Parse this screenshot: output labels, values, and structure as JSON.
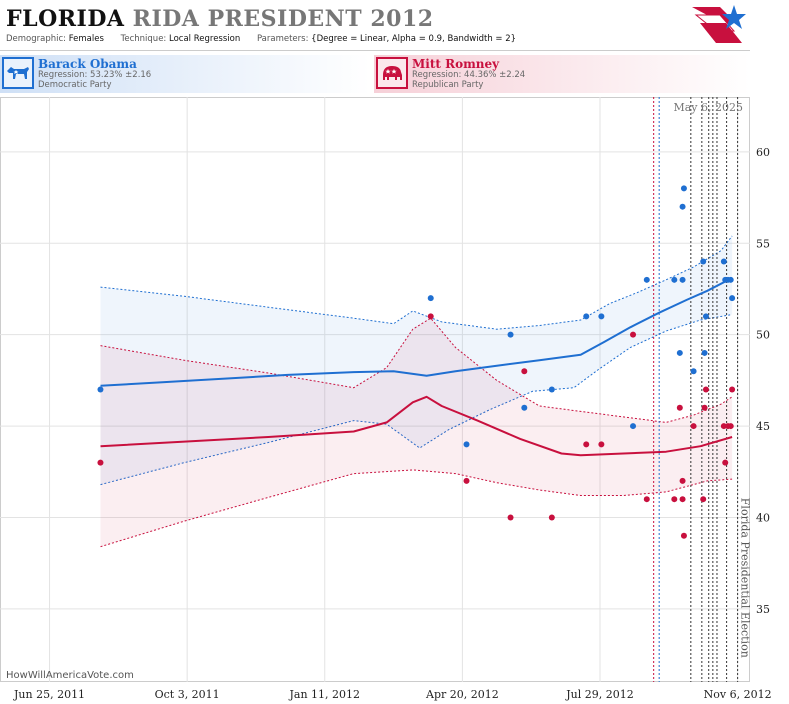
{
  "header": {
    "title_state": "FLORIDA",
    "title_state_echo": "RIDA",
    "title_office": "PRESIDENT",
    "title_year": "2012",
    "demographic_label": "Demographic:",
    "demographic_value": "Females",
    "technique_label": "Technique:",
    "technique_value": "Local Regression",
    "parameters_label": "Parameters:",
    "parameters_value": "{Degree = Linear, Alpha = 0.9, Bandwidth = 2}"
  },
  "candidates": [
    {
      "name": "Barack Obama",
      "regression": "Regression: 53.23% ±2.16",
      "party": "Democratic Party",
      "color": "#1f6fd1"
    },
    {
      "name": "Mitt Romney",
      "regression": "Regression: 44.36% ±2.24",
      "party": "Republican Party",
      "color": "#c8103e"
    }
  ],
  "footer": {
    "watermark": "HowWillAmericaVote.com",
    "date_stamp": "May 6, 2025",
    "election_label": "Florida Presidential Election"
  },
  "chart_data": {
    "type": "scatter",
    "x_unit": "date",
    "xlim": [
      "2011-05-20",
      "2012-11-15"
    ],
    "ylim": [
      31,
      63
    ],
    "y_ticks": [
      35,
      40,
      45,
      50,
      55,
      60
    ],
    "x_ticks": [
      {
        "date": "2011-06-25",
        "label": "Jun 25, 2011"
      },
      {
        "date": "2011-10-03",
        "label": "Oct 3, 2011"
      },
      {
        "date": "2012-01-11",
        "label": "Jan 11, 2012"
      },
      {
        "date": "2012-04-20",
        "label": "Apr 20, 2012"
      },
      {
        "date": "2012-07-29",
        "label": "Jul 29, 2012"
      },
      {
        "date": "2012-11-06",
        "label": "Nov 6, 2012"
      }
    ],
    "election_date": "2012-11-06",
    "grid": true,
    "vertical_markers": [
      {
        "date": "2012-09-06",
        "color": "#c8103e"
      },
      {
        "date": "2012-09-10",
        "color": "#1f6fd1"
      },
      {
        "date": "2012-10-03",
        "color": "#333333"
      },
      {
        "date": "2012-10-11",
        "color": "#333333"
      },
      {
        "date": "2012-10-16",
        "color": "#333333"
      },
      {
        "date": "2012-10-19",
        "color": "#333333"
      },
      {
        "date": "2012-10-22",
        "color": "#333333"
      },
      {
        "date": "2012-10-29",
        "color": "#333333"
      },
      {
        "date": "2012-11-06",
        "color": "#333333"
      }
    ],
    "series": [
      {
        "name": "Barack Obama",
        "color": "#1f6fd1",
        "points": [
          [
            "2011-08-01",
            47
          ],
          [
            "2012-03-28",
            52
          ],
          [
            "2012-04-23",
            44
          ],
          [
            "2012-05-25",
            50
          ],
          [
            "2012-06-04",
            46
          ],
          [
            "2012-06-24",
            47
          ],
          [
            "2012-07-19",
            51
          ],
          [
            "2012-07-30",
            51
          ],
          [
            "2012-08-22",
            45
          ],
          [
            "2012-09-01",
            53
          ],
          [
            "2012-09-21",
            53
          ],
          [
            "2012-09-25",
            49
          ],
          [
            "2012-09-27",
            53
          ],
          [
            "2012-09-27",
            57
          ],
          [
            "2012-09-28",
            58
          ],
          [
            "2012-10-05",
            48
          ],
          [
            "2012-10-12",
            54
          ],
          [
            "2012-10-13",
            49
          ],
          [
            "2012-10-14",
            51
          ],
          [
            "2012-10-27",
            54
          ],
          [
            "2012-10-28",
            53
          ],
          [
            "2012-10-30",
            53
          ],
          [
            "2012-11-01",
            53
          ],
          [
            "2012-11-02",
            52
          ]
        ],
        "trend": [
          [
            "2011-08-01",
            47.2
          ],
          [
            "2011-09-15",
            47.4
          ],
          [
            "2011-11-01",
            47.6
          ],
          [
            "2011-12-15",
            47.8
          ],
          [
            "2012-02-01",
            47.95
          ],
          [
            "2012-03-01",
            48.0
          ],
          [
            "2012-03-25",
            47.75
          ],
          [
            "2012-04-15",
            48.0
          ],
          [
            "2012-05-15",
            48.3
          ],
          [
            "2012-06-15",
            48.6
          ],
          [
            "2012-07-15",
            48.9
          ],
          [
            "2012-08-01",
            49.6
          ],
          [
            "2012-08-20",
            50.4
          ],
          [
            "2012-09-10",
            51.2
          ],
          [
            "2012-09-30",
            51.9
          ],
          [
            "2012-10-15",
            52.4
          ],
          [
            "2012-11-02",
            53.1
          ]
        ],
        "upper": [
          [
            "2011-08-01",
            52.6
          ],
          [
            "2011-10-01",
            52.1
          ],
          [
            "2011-12-01",
            51.5
          ],
          [
            "2012-02-01",
            50.9
          ],
          [
            "2012-03-01",
            50.6
          ],
          [
            "2012-03-15",
            51.3
          ],
          [
            "2012-04-05",
            50.7
          ],
          [
            "2012-05-15",
            50.3
          ],
          [
            "2012-06-15",
            50.5
          ],
          [
            "2012-07-15",
            50.8
          ],
          [
            "2012-08-05",
            51.7
          ],
          [
            "2012-08-25",
            52.3
          ],
          [
            "2012-09-15",
            53.0
          ],
          [
            "2012-10-05",
            53.7
          ],
          [
            "2012-10-25",
            54.6
          ],
          [
            "2012-11-02",
            55.4
          ]
        ],
        "lower": [
          [
            "2011-08-01",
            41.8
          ],
          [
            "2011-10-01",
            43.0
          ],
          [
            "2011-12-01",
            44.1
          ],
          [
            "2012-02-01",
            45.3
          ],
          [
            "2012-02-25",
            45.1
          ],
          [
            "2012-03-20",
            43.8
          ],
          [
            "2012-04-10",
            44.8
          ],
          [
            "2012-05-10",
            45.9
          ],
          [
            "2012-06-10",
            46.9
          ],
          [
            "2012-07-10",
            47.1
          ],
          [
            "2012-07-28",
            48.1
          ],
          [
            "2012-08-20",
            49.3
          ],
          [
            "2012-09-15",
            50.2
          ],
          [
            "2012-10-10",
            50.8
          ],
          [
            "2012-11-02",
            51.1
          ]
        ]
      },
      {
        "name": "Mitt Romney",
        "color": "#c8103e",
        "points": [
          [
            "2011-08-01",
            43
          ],
          [
            "2012-03-28",
            51
          ],
          [
            "2012-04-23",
            42
          ],
          [
            "2012-05-25",
            40
          ],
          [
            "2012-06-04",
            48
          ],
          [
            "2012-06-24",
            40
          ],
          [
            "2012-07-19",
            44
          ],
          [
            "2012-07-30",
            44
          ],
          [
            "2012-08-22",
            50
          ],
          [
            "2012-09-01",
            41
          ],
          [
            "2012-09-21",
            41
          ],
          [
            "2012-09-25",
            46
          ],
          [
            "2012-09-27",
            42
          ],
          [
            "2012-09-27",
            41
          ],
          [
            "2012-09-28",
            39
          ],
          [
            "2012-10-05",
            45
          ],
          [
            "2012-10-12",
            41
          ],
          [
            "2012-10-13",
            46
          ],
          [
            "2012-10-14",
            47
          ],
          [
            "2012-10-27",
            45
          ],
          [
            "2012-10-28",
            43
          ],
          [
            "2012-10-30",
            45
          ],
          [
            "2012-11-01",
            45
          ],
          [
            "2012-11-02",
            47
          ]
        ],
        "trend": [
          [
            "2011-08-01",
            43.9
          ],
          [
            "2011-10-01",
            44.15
          ],
          [
            "2011-12-01",
            44.4
          ],
          [
            "2012-02-01",
            44.7
          ],
          [
            "2012-02-25",
            45.2
          ],
          [
            "2012-03-15",
            46.3
          ],
          [
            "2012-03-25",
            46.6
          ],
          [
            "2012-04-05",
            46.1
          ],
          [
            "2012-05-01",
            45.3
          ],
          [
            "2012-06-01",
            44.3
          ],
          [
            "2012-07-01",
            43.5
          ],
          [
            "2012-07-15",
            43.4
          ],
          [
            "2012-08-15",
            43.5
          ],
          [
            "2012-09-15",
            43.6
          ],
          [
            "2012-10-10",
            43.9
          ],
          [
            "2012-11-02",
            44.4
          ]
        ],
        "upper": [
          [
            "2011-08-01",
            49.4
          ],
          [
            "2011-10-01",
            48.6
          ],
          [
            "2011-12-01",
            47.9
          ],
          [
            "2012-02-01",
            47.1
          ],
          [
            "2012-02-25",
            48.2
          ],
          [
            "2012-03-15",
            50.3
          ],
          [
            "2012-03-28",
            50.9
          ],
          [
            "2012-04-15",
            49.3
          ],
          [
            "2012-05-15",
            47.5
          ],
          [
            "2012-06-15",
            46.1
          ],
          [
            "2012-07-15",
            45.8
          ],
          [
            "2012-08-15",
            45.5
          ],
          [
            "2012-09-15",
            45.2
          ],
          [
            "2012-10-05",
            45.6
          ],
          [
            "2012-10-25",
            46.2
          ],
          [
            "2012-11-02",
            46.6
          ]
        ],
        "lower": [
          [
            "2011-08-01",
            38.4
          ],
          [
            "2011-10-01",
            39.8
          ],
          [
            "2011-12-01",
            41.1
          ],
          [
            "2012-02-01",
            42.4
          ],
          [
            "2012-03-15",
            42.6
          ],
          [
            "2012-04-15",
            42.4
          ],
          [
            "2012-05-15",
            41.9
          ],
          [
            "2012-06-15",
            41.5
          ],
          [
            "2012-07-15",
            41.2
          ],
          [
            "2012-08-15",
            41.2
          ],
          [
            "2012-09-15",
            41.4
          ],
          [
            "2012-10-15",
            42.0
          ],
          [
            "2012-11-02",
            42.1
          ]
        ]
      }
    ]
  }
}
